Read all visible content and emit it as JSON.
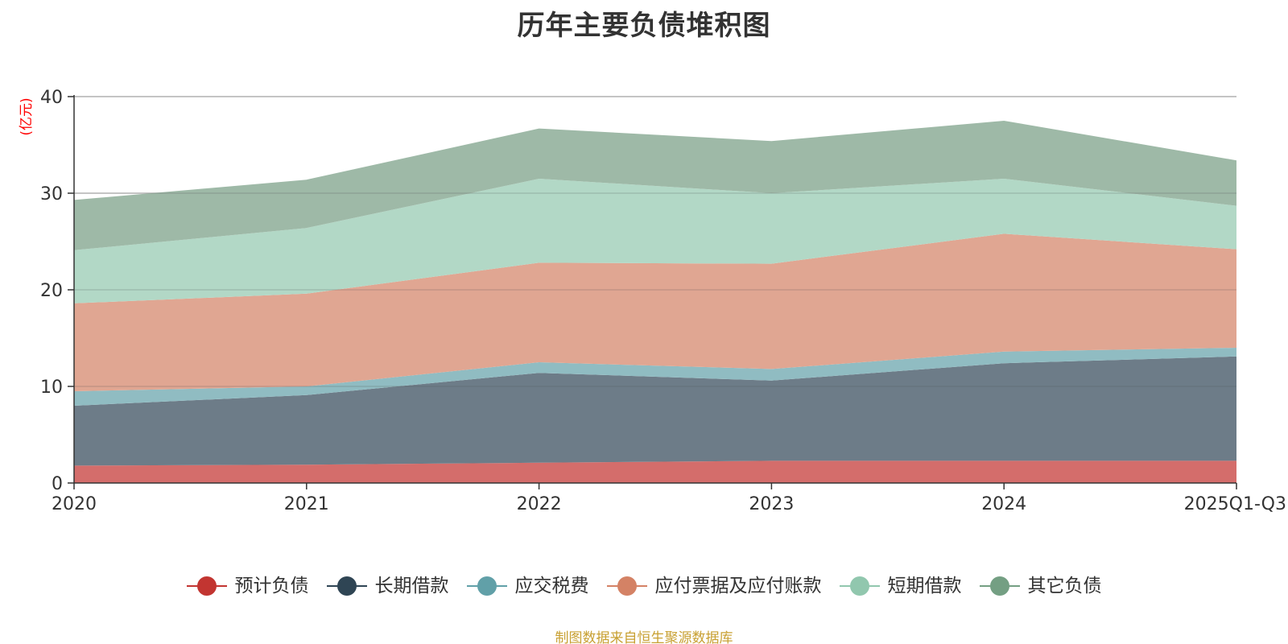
{
  "chart_data": {
    "type": "area",
    "stacked": true,
    "title": "历年主要负债堆积图",
    "ylabel": "(亿元)",
    "xlabel": "",
    "ylim": [
      0,
      40
    ],
    "yticks": [
      "0",
      "10",
      "20",
      "30",
      "40"
    ],
    "categories": [
      "2020",
      "2021",
      "2022",
      "2023",
      "2024",
      "2025Q1-Q3"
    ],
    "series": [
      {
        "name": "预计负债",
        "color": "#c23531",
        "fill": "#d46d6b",
        "values": [
          1.8,
          1.9,
          2.1,
          2.3,
          2.3,
          2.3
        ]
      },
      {
        "name": "长期借款",
        "color": "#2f4554",
        "fill": "#6d7c88",
        "values": [
          6.2,
          7.2,
          9.3,
          8.3,
          10.1,
          10.8
        ]
      },
      {
        "name": "应交税费",
        "color": "#61a0a8",
        "fill": "#90bcc2",
        "values": [
          1.5,
          0.9,
          1.1,
          1.2,
          1.2,
          0.9
        ]
      },
      {
        "name": "应付票据及应付账款",
        "color": "#d48265",
        "fill": "#e0a692",
        "values": [
          9.1,
          9.6,
          10.3,
          10.9,
          12.2,
          10.2
        ]
      },
      {
        "name": "短期借款",
        "color": "#91c7ae",
        "fill": "#b2d8c6",
        "values": [
          5.5,
          6.8,
          8.7,
          7.3,
          5.7,
          4.5
        ]
      },
      {
        "name": "其它负债",
        "color": "#749f83",
        "fill": "#9eb9a7",
        "values": [
          5.2,
          5.0,
          5.2,
          5.4,
          6.0,
          4.7
        ]
      }
    ]
  },
  "footer": {
    "source": "制图数据来自恒生聚源数据库"
  }
}
